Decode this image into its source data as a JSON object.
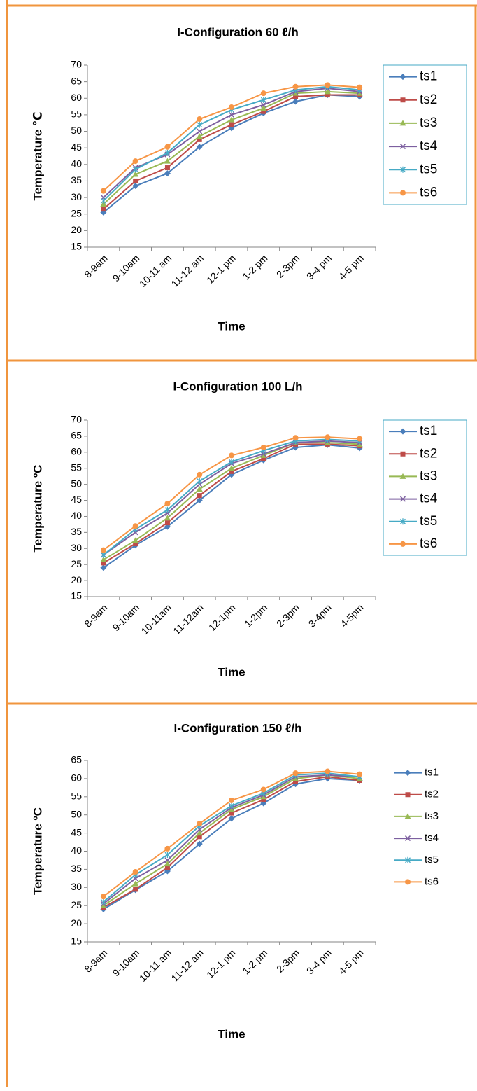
{
  "chart_data": [
    {
      "type": "line",
      "title": "I-Configuration 60 ℓ/h",
      "x_label": "Time",
      "y_label": "Temperature ℃",
      "categories": [
        "8-9am",
        "9-10am",
        "10-11 am",
        "11-12 am",
        "12-1 pm",
        "1-2 pm",
        "2-3pm",
        "3-4 pm",
        "4-5 pm"
      ],
      "ylim": [
        15,
        70
      ],
      "yticks": [
        15,
        20,
        25,
        30,
        35,
        40,
        45,
        50,
        55,
        60,
        65,
        70
      ],
      "series": [
        {
          "name": "ts1",
          "color": "#4a7ebb",
          "values": [
            25.5,
            33.5,
            37.3,
            45.3,
            51,
            55.5,
            59,
            61,
            60.5
          ]
        },
        {
          "name": "ts2",
          "color": "#be4b48",
          "values": [
            26.5,
            35,
            39,
            47.5,
            52,
            56,
            60.5,
            61,
            61
          ]
        },
        {
          "name": "ts3",
          "color": "#98b954",
          "values": [
            28,
            37,
            41,
            48.5,
            53.5,
            57,
            61.5,
            62,
            61.5
          ]
        },
        {
          "name": "ts4",
          "color": "#7d60a0",
          "values": [
            30,
            39,
            43,
            50,
            55,
            58,
            62,
            63,
            62
          ]
        },
        {
          "name": "ts5",
          "color": "#46aac5",
          "values": [
            29,
            38.5,
            43.5,
            52,
            56.5,
            59.5,
            62.5,
            63.5,
            62.5
          ]
        },
        {
          "name": "ts6",
          "color": "#f79646",
          "values": [
            32,
            41,
            45.3,
            53.7,
            57.3,
            61.5,
            63.5,
            64,
            63.3
          ]
        }
      ]
    },
    {
      "type": "line",
      "title": "I-Configuration 100 L/h",
      "x_label": "Time",
      "y_label": "Temperature ºC",
      "categories": [
        "8-9am",
        "9-10am",
        "10-11am",
        "11-12am",
        "12-1pm",
        "1-2pm",
        "2-3pm",
        "3-4pm",
        "4-5pm"
      ],
      "ylim": [
        15,
        70
      ],
      "yticks": [
        15,
        20,
        25,
        30,
        35,
        40,
        45,
        50,
        55,
        60,
        65,
        70
      ],
      "series": [
        {
          "name": "ts1",
          "color": "#4a7ebb",
          "values": [
            24,
            31,
            36.8,
            45,
            53,
            57.5,
            61.5,
            62.3,
            61.3
          ]
        },
        {
          "name": "ts2",
          "color": "#be4b48",
          "values": [
            25.5,
            31.5,
            38,
            46.5,
            54,
            58,
            62.5,
            62.5,
            62
          ]
        },
        {
          "name": "ts3",
          "color": "#98b954",
          "values": [
            26.5,
            32.5,
            39.5,
            48.5,
            55,
            59,
            63,
            63,
            62.5
          ]
        },
        {
          "name": "ts4",
          "color": "#7d60a0",
          "values": [
            28,
            35,
            41,
            50,
            56.5,
            59.5,
            63,
            63.5,
            63
          ]
        },
        {
          "name": "ts5",
          "color": "#46aac5",
          "values": [
            28,
            36,
            42,
            51,
            57,
            60.5,
            63.5,
            64,
            63.5
          ]
        },
        {
          "name": "ts6",
          "color": "#f79646",
          "values": [
            29.5,
            37,
            44,
            53,
            59,
            61.5,
            64.5,
            64.7,
            64.2
          ]
        }
      ]
    },
    {
      "type": "line",
      "title": "I-Configuration 150 ℓ/h",
      "x_label": "Time",
      "y_label": "Temperature ºC",
      "categories": [
        "8-9am",
        "9-10am",
        "10-11 am",
        "11-12 am",
        "12-1 pm",
        "1-2 pm",
        "2-3pm",
        "3-4 pm",
        "4-5 pm"
      ],
      "ylim": [
        15,
        65
      ],
      "yticks": [
        15,
        20,
        25,
        30,
        35,
        40,
        45,
        50,
        55,
        60,
        65
      ],
      "series": [
        {
          "name": "ts1",
          "color": "#4a7ebb",
          "values": [
            24,
            29.3,
            34.5,
            42,
            49,
            53.2,
            58.5,
            60,
            59.5
          ]
        },
        {
          "name": "ts2",
          "color": "#be4b48",
          "values": [
            24.5,
            29.5,
            35.5,
            44,
            50.5,
            54.2,
            59.2,
            60.5,
            59.5
          ]
        },
        {
          "name": "ts3",
          "color": "#98b954",
          "values": [
            25,
            31,
            36.5,
            45,
            51.5,
            55,
            60,
            61,
            60
          ]
        },
        {
          "name": "ts4",
          "color": "#7d60a0",
          "values": [
            25.5,
            32.5,
            37.5,
            46,
            52,
            55.5,
            60.5,
            61,
            60.5
          ]
        },
        {
          "name": "ts5",
          "color": "#46aac5",
          "values": [
            26,
            33.5,
            39,
            47,
            52.5,
            56,
            61,
            61.5,
            60.5
          ]
        },
        {
          "name": "ts6",
          "color": "#f79646",
          "values": [
            27.5,
            34.3,
            40.7,
            47.6,
            54,
            57,
            61.5,
            62,
            61.2
          ]
        }
      ]
    }
  ]
}
